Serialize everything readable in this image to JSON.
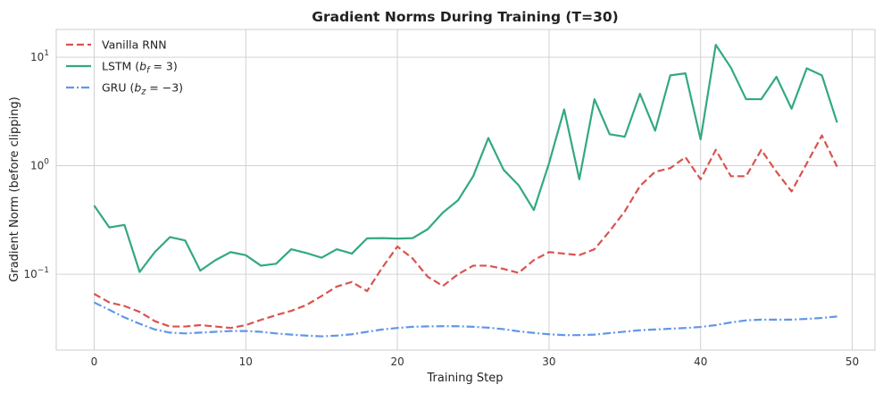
{
  "chart_data": {
    "type": "line",
    "title": "Gradient Norms During Training (T=30)",
    "xlabel": "Training Step",
    "ylabel": "Gradient Norm (before clipping)",
    "xlim": [
      -2.5,
      51.5
    ],
    "ylim": [
      0.02,
      18
    ],
    "yscale": "log",
    "grid": true,
    "legend_position": "top-left",
    "x_ticks": [
      0,
      10,
      20,
      30,
      40,
      50
    ],
    "x_tick_labels": [
      "0",
      "10",
      "20",
      "30",
      "40",
      "50"
    ],
    "y_ticks": [
      0.1,
      1,
      10
    ],
    "y_tick_labels": [
      {
        "base": "10",
        "exp": "−1"
      },
      {
        "base": "10",
        "exp": "0"
      },
      {
        "base": "10",
        "exp": "1"
      }
    ],
    "x": [
      0,
      1,
      2,
      3,
      4,
      5,
      6,
      7,
      8,
      9,
      10,
      11,
      12,
      13,
      14,
      15,
      16,
      17,
      18,
      19,
      20,
      21,
      22,
      23,
      24,
      25,
      26,
      27,
      28,
      29,
      30,
      31,
      32,
      33,
      34,
      35,
      36,
      37,
      38,
      39,
      40,
      41,
      42,
      43,
      44,
      45,
      46,
      47,
      48,
      49
    ],
    "series": [
      {
        "name": "Vanilla RNN",
        "legend": [
          {
            "t": "Vanilla RNN"
          }
        ],
        "color": "#d9534f",
        "dash": "dashed",
        "values": [
          0.066,
          0.055,
          0.051,
          0.045,
          0.037,
          0.033,
          0.033,
          0.034,
          0.033,
          0.032,
          0.034,
          0.038,
          0.042,
          0.046,
          0.052,
          0.063,
          0.077,
          0.085,
          0.07,
          0.115,
          0.18,
          0.14,
          0.095,
          0.078,
          0.1,
          0.12,
          0.12,
          0.112,
          0.103,
          0.135,
          0.16,
          0.155,
          0.15,
          0.17,
          0.25,
          0.38,
          0.65,
          0.88,
          0.95,
          1.2,
          0.75,
          1.4,
          0.8,
          0.8,
          1.4,
          0.88,
          0.58,
          1.05,
          1.9,
          0.98
        ]
      },
      {
        "name": "LSTM",
        "legend": [
          {
            "t": "LSTM ("
          },
          {
            "t": "b",
            "i": true
          },
          {
            "t": "f",
            "sub": true
          },
          {
            "t": " = 3)"
          }
        ],
        "color": "#32a97f",
        "dash": "solid",
        "values": [
          0.43,
          0.27,
          0.285,
          0.105,
          0.16,
          0.22,
          0.205,
          0.108,
          0.135,
          0.16,
          0.15,
          0.12,
          0.125,
          0.17,
          0.157,
          0.142,
          0.17,
          0.155,
          0.214,
          0.215,
          0.213,
          0.215,
          0.26,
          0.37,
          0.48,
          0.8,
          1.8,
          0.92,
          0.66,
          0.39,
          1.05,
          3.3,
          0.75,
          4.1,
          1.95,
          1.85,
          4.6,
          2.1,
          6.8,
          7.1,
          1.75,
          13.0,
          8.0,
          4.1,
          4.1,
          6.6,
          3.35,
          7.9,
          6.8,
          2.5
        ]
      },
      {
        "name": "GRU",
        "legend": [
          {
            "t": "GRU ("
          },
          {
            "t": "b",
            "i": true
          },
          {
            "t": "z",
            "sub": true
          },
          {
            "t": " = −3)"
          }
        ],
        "color": "#6196e8",
        "dash": "dashdot",
        "values": [
          0.055,
          0.047,
          0.04,
          0.035,
          0.031,
          0.029,
          0.0285,
          0.029,
          0.0295,
          0.03,
          0.03,
          0.0295,
          0.0285,
          0.0278,
          0.0272,
          0.0268,
          0.0272,
          0.028,
          0.0295,
          0.031,
          0.032,
          0.0328,
          0.0331,
          0.0332,
          0.0332,
          0.0328,
          0.0322,
          0.0312,
          0.0298,
          0.0288,
          0.028,
          0.0275,
          0.0275,
          0.0278,
          0.0287,
          0.0296,
          0.0305,
          0.031,
          0.0315,
          0.032,
          0.0327,
          0.034,
          0.036,
          0.0376,
          0.0382,
          0.0382,
          0.0382,
          0.0388,
          0.0396,
          0.0408
        ]
      }
    ]
  }
}
